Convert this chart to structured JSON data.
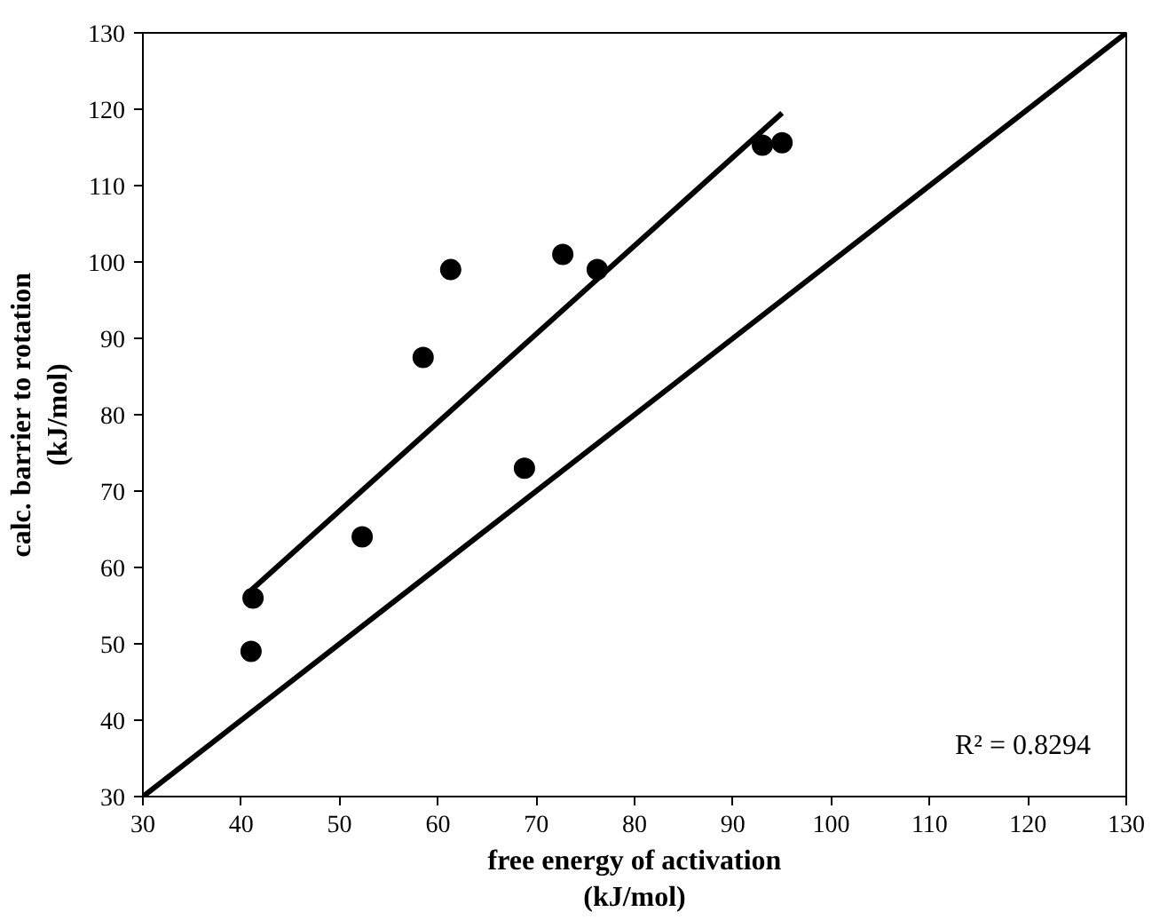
{
  "chart_data": {
    "type": "scatter",
    "xlabel": "free energy of activation\n(kJ/mol)",
    "ylabel": "calc. barrier to rotation\n(kJ/mol)",
    "xlim": [
      30,
      130
    ],
    "ylim": [
      30,
      130
    ],
    "xticks": [
      30,
      40,
      50,
      60,
      70,
      80,
      90,
      100,
      110,
      120,
      130
    ],
    "yticks": [
      30,
      40,
      50,
      60,
      70,
      80,
      90,
      100,
      110,
      120,
      130
    ],
    "grid": false,
    "marker": "circle",
    "annotations": [
      "R² = 0.8294"
    ],
    "series": [
      {
        "color": "#000000",
        "x": [
          41,
          41.2,
          52.3,
          58.5,
          61.3,
          68.8,
          72.7,
          76.2,
          93,
          95
        ],
        "values": [
          49,
          56,
          64,
          87.5,
          99,
          73,
          101,
          99,
          115.3,
          115.6
        ]
      },
      {
        "type": "line",
        "color": "#000000",
        "marker": "none",
        "line_style": "solid",
        "x": [
          41,
          95
        ],
        "values": [
          57,
          119.5
        ]
      },
      {
        "type": "line",
        "color": "#000000",
        "marker": "none",
        "line_style": "solid",
        "x": [
          30,
          130
        ],
        "values": [
          30,
          130
        ]
      }
    ]
  }
}
